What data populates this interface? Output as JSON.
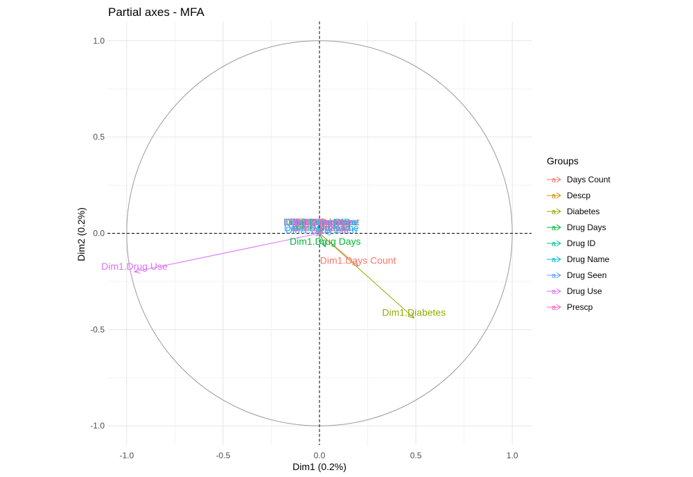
{
  "chart_data": {
    "type": "scatter",
    "title": "Partial axes - MFA",
    "xlabel": "Dim1 (0.2%)",
    "ylabel": "Dim2 (0.2%)",
    "xlim": [
      -1.1,
      1.1
    ],
    "ylim": [
      -1.1,
      1.1
    ],
    "x_ticks": [
      -1.0,
      -0.5,
      0.0,
      0.5,
      1.0
    ],
    "y_ticks": [
      -1.0,
      -0.5,
      0.0,
      0.5,
      1.0
    ],
    "x_tick_labels": [
      "-1.0",
      "-0.5",
      "0.0",
      "0.5",
      "1.0"
    ],
    "y_tick_labels": [
      "-1.0",
      "-0.5",
      "0.0",
      "0.5",
      "1.0"
    ],
    "grid": true,
    "unit_circle": true,
    "legend": {
      "title": "Groups",
      "placement": "right",
      "glyph": "a",
      "entries": [
        "Days Count",
        "Descp",
        "Diabetes",
        "Drug Days",
        "Drug ID",
        "Drug Name",
        "Drug Seen",
        "Drug Use",
        "Prescp"
      ]
    },
    "series": [
      {
        "name": "Days Count",
        "color": "#F8766D",
        "arrows": [
          {
            "label": "Dim1.Days Count",
            "x": 0.2,
            "y": -0.17
          },
          {
            "label": "Dim2.Days Count",
            "x": 0.01,
            "y": 0.03
          }
        ]
      },
      {
        "name": "Descp",
        "color": "#D39200",
        "arrows": [
          {
            "label": "Dim1.Descp",
            "x": 0.01,
            "y": 0.01
          },
          {
            "label": "Dim2.Descp",
            "x": 0.01,
            "y": 0.03
          }
        ]
      },
      {
        "name": "Diabetes",
        "color": "#93AA00",
        "arrows": [
          {
            "label": "Dim1.Diabetes",
            "x": 0.49,
            "y": -0.44
          },
          {
            "label": "Dim2.Diabetes",
            "x": 0.01,
            "y": 0.03
          }
        ]
      },
      {
        "name": "Drug Days",
        "color": "#00BA38",
        "arrows": [
          {
            "label": "Dim1.Drug Days",
            "x": 0.03,
            "y": -0.07
          },
          {
            "label": "Dim2.Drug Days",
            "x": 0.01,
            "y": 0.03
          }
        ]
      },
      {
        "name": "Drug ID",
        "color": "#00C19F",
        "arrows": [
          {
            "label": "Dim1.Drug ID",
            "x": 0.01,
            "y": 0.0
          },
          {
            "label": "Dim2.Drug ID",
            "x": 0.01,
            "y": 0.03
          }
        ]
      },
      {
        "name": "Drug Name",
        "color": "#00B9E3",
        "arrows": [
          {
            "label": "Dim1.Drug Name",
            "x": 0.01,
            "y": 0.0
          },
          {
            "label": "Dim2.Drug Name",
            "x": 0.01,
            "y": 0.03
          }
        ]
      },
      {
        "name": "Drug Seen",
        "color": "#619CFF",
        "arrows": [
          {
            "label": "Dim1.Drug Seen",
            "x": 0.01,
            "y": -0.01
          },
          {
            "label": "Dim2.Drug Seen",
            "x": 0.01,
            "y": 0.03
          }
        ]
      },
      {
        "name": "Drug Use",
        "color": "#DB72FB",
        "arrows": [
          {
            "label": "Dim1.Drug Use",
            "x": -0.96,
            "y": -0.2
          },
          {
            "label": "Dim2.Drug Use",
            "x": 0.01,
            "y": 0.03
          }
        ]
      },
      {
        "name": "Prescp",
        "color": "#FF61C3",
        "arrows": [
          {
            "label": "Dim1.Prescp",
            "x": 0.01,
            "y": 0.0
          },
          {
            "label": "Dim2.Prescp",
            "x": 0.01,
            "y": 0.03
          }
        ]
      }
    ]
  }
}
